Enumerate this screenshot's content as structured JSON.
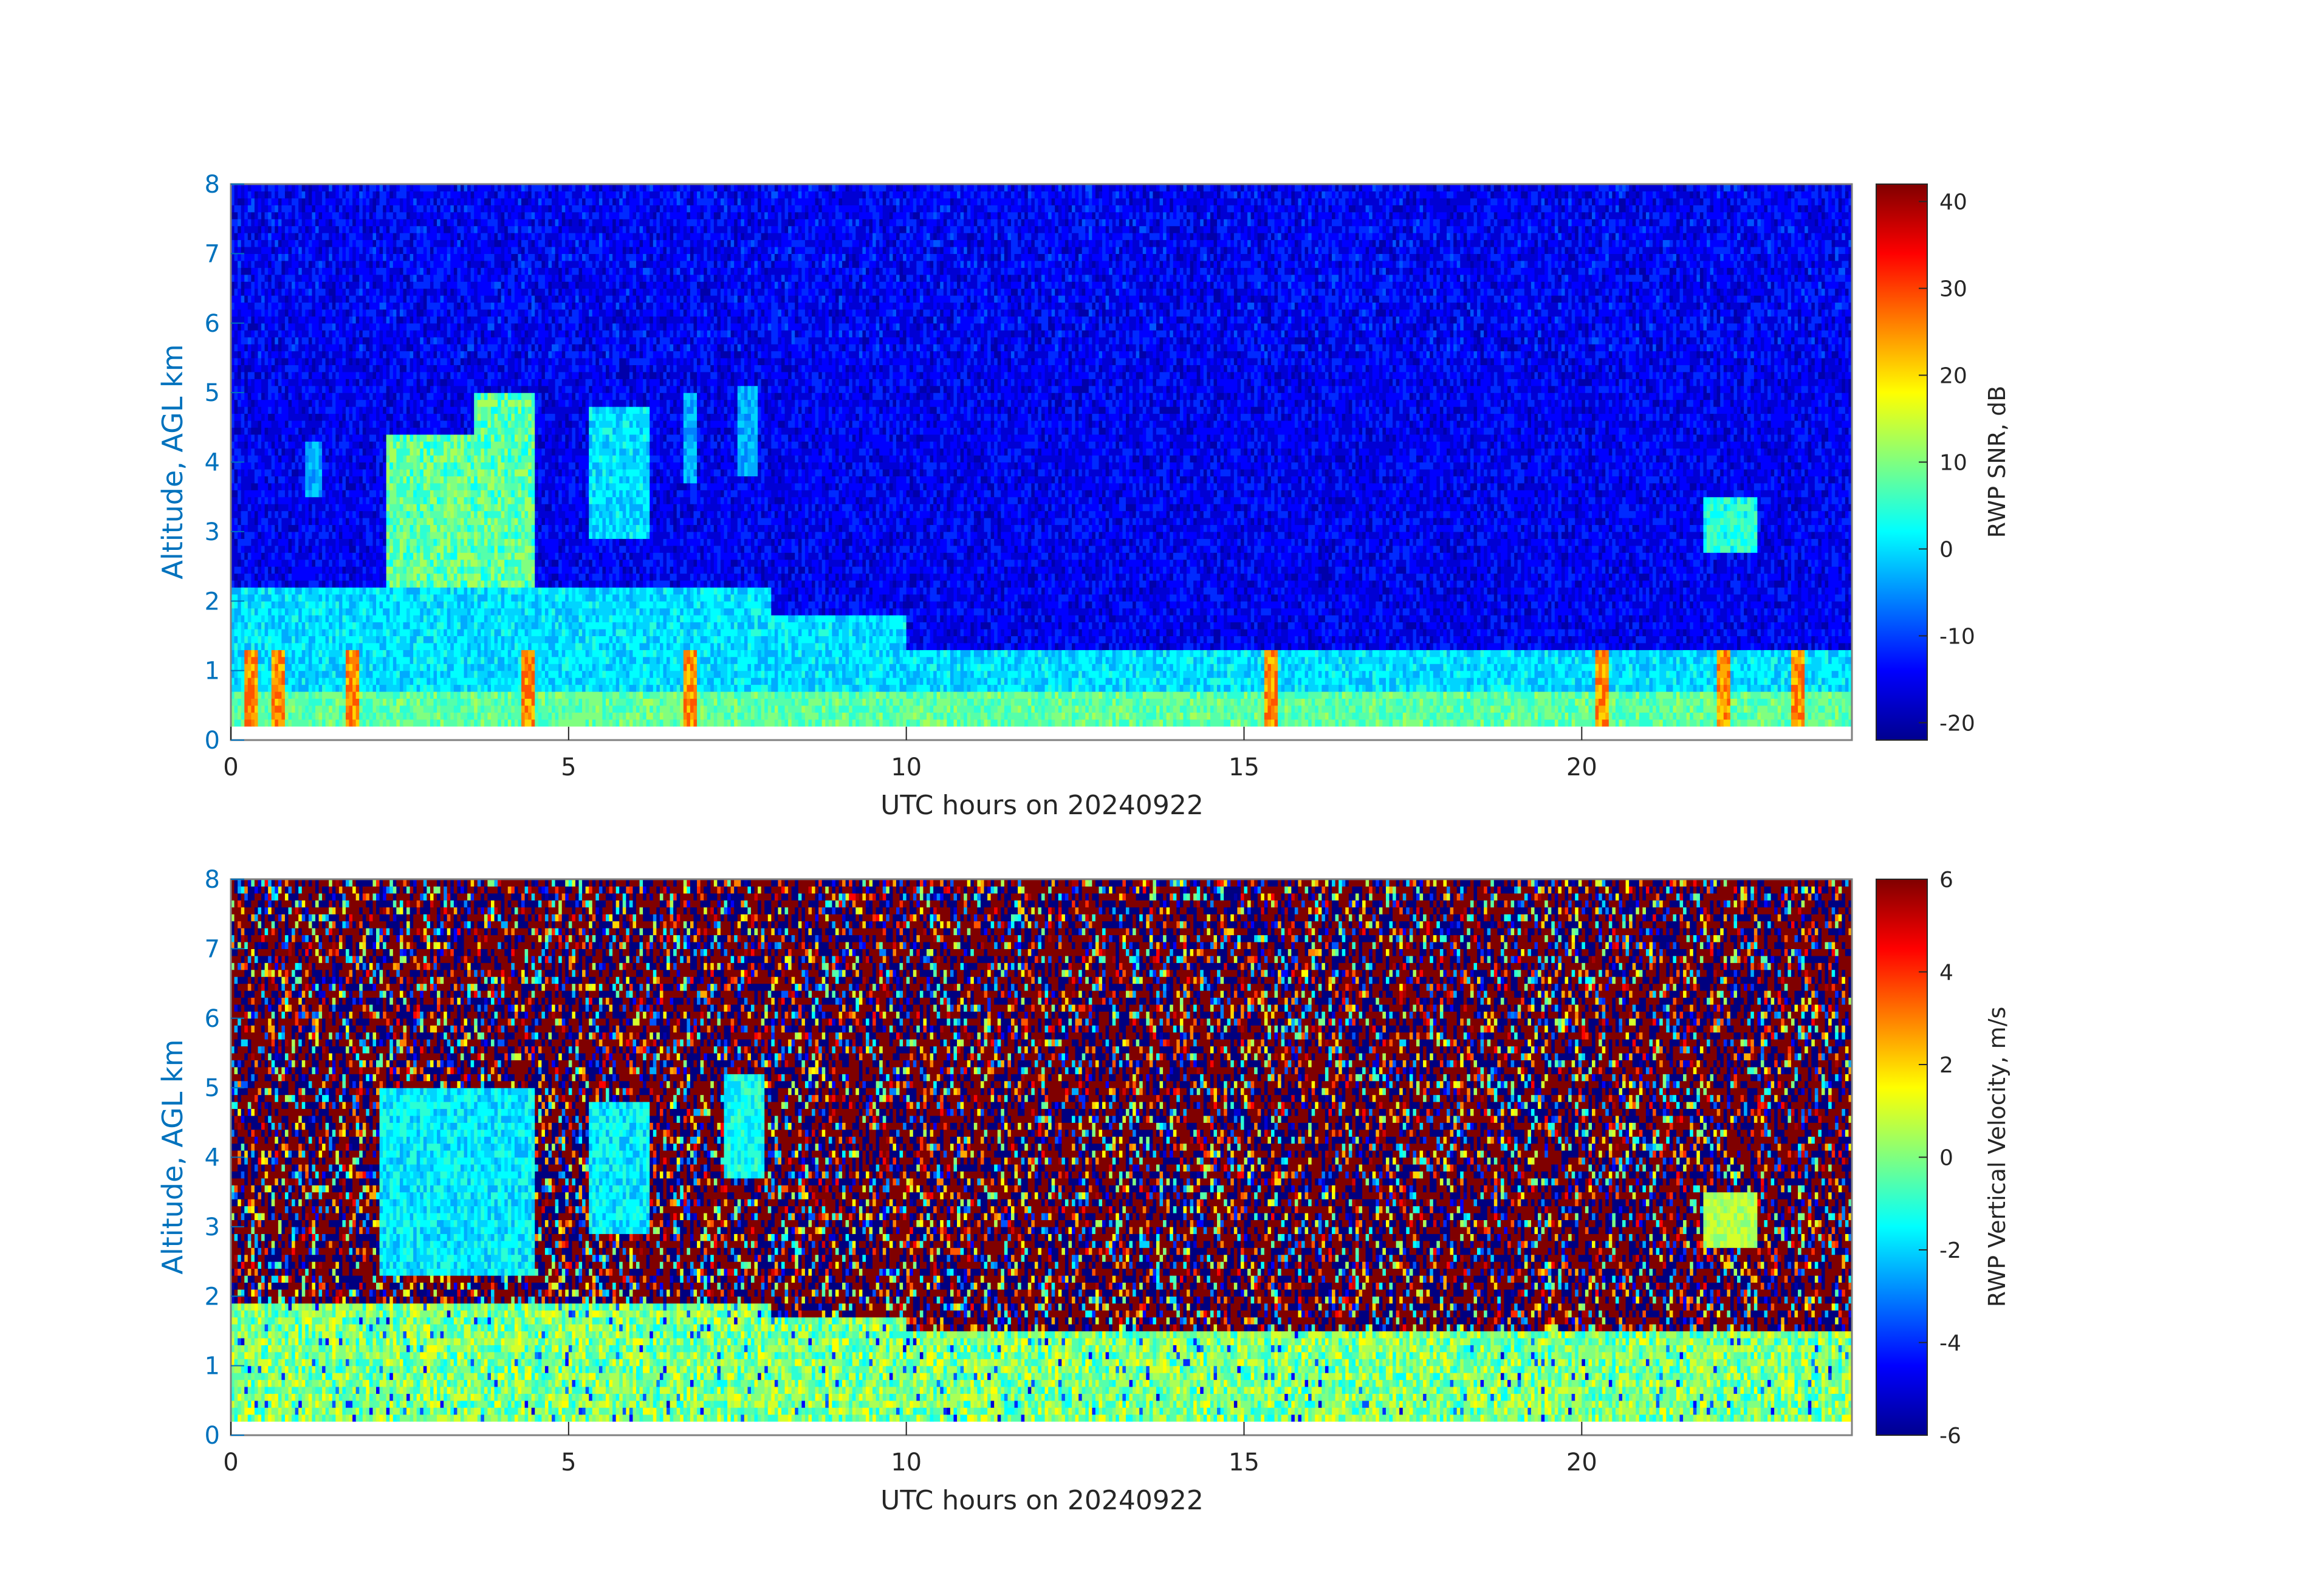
{
  "chart_data": [
    {
      "type": "heatmap",
      "xlabel": "UTC hours on 20240922",
      "ylabel": "Altitude, AGL km",
      "xlim": [
        0,
        24
      ],
      "ylim": [
        0,
        8
      ],
      "xticks": [
        "0",
        "5",
        "10",
        "15",
        "20"
      ],
      "yticks": [
        "0",
        "1",
        "2",
        "3",
        "4",
        "5",
        "6",
        "7",
        "8"
      ],
      "colorbar": {
        "label": "RWP SNR, dB",
        "range": [
          -22,
          42
        ],
        "ticks": [
          "-20",
          "-10",
          "0",
          "10",
          "20",
          "30",
          "40"
        ],
        "colormap": "jet"
      },
      "data_valid_altitude_range_km": [
        0.2,
        8
      ],
      "features": [
        {
          "x": [
            0,
            24
          ],
          "y": [
            0.2,
            1.3
          ],
          "level_db": [
            0,
            15
          ]
        },
        {
          "x": [
            0,
            8
          ],
          "y": [
            1.3,
            2.3
          ],
          "level_db": [
            -5,
            5
          ]
        },
        {
          "x": [
            2.3,
            4.5
          ],
          "y": [
            2.3,
            5.0
          ],
          "level_db": [
            0,
            15
          ]
        },
        {
          "x": [
            5.3,
            6.2
          ],
          "y": [
            2.9,
            4.8
          ],
          "level_db": [
            -5,
            5
          ]
        },
        {
          "x": [
            7.5,
            7.8
          ],
          "y": [
            3.8,
            5.1
          ],
          "level_db": [
            -5,
            0
          ]
        },
        {
          "x": [
            21.8,
            22.6
          ],
          "y": [
            2.7,
            3.5
          ],
          "level_db": [
            0,
            8
          ]
        }
      ]
    },
    {
      "type": "heatmap",
      "xlabel": "UTC hours on 20240922",
      "ylabel": "Altitude, AGL km",
      "xlim": [
        0,
        24
      ],
      "ylim": [
        0,
        8
      ],
      "xticks": [
        "0",
        "5",
        "10",
        "15",
        "20"
      ],
      "yticks": [
        "0",
        "1",
        "2",
        "3",
        "4",
        "5",
        "6",
        "7",
        "8"
      ],
      "colorbar": {
        "label": "RWP Vertical Velocity, m/s",
        "range": [
          -6,
          6
        ],
        "ticks": [
          "-6",
          "-4",
          "-2",
          "0",
          "2",
          "4",
          "6"
        ],
        "colormap": "jet"
      },
      "data_valid_altitude_range_km": [
        0.2,
        8
      ],
      "features": [
        {
          "x": [
            0,
            24
          ],
          "y": [
            0.2,
            1.6
          ],
          "level_ms": [
            -1,
            1.5
          ]
        },
        {
          "x": [
            2.2,
            4.5
          ],
          "y": [
            2.3,
            5.0
          ],
          "level_ms": [
            -2.5,
            -1
          ]
        },
        {
          "x": [
            5.3,
            6.2
          ],
          "y": [
            2.9,
            4.8
          ],
          "level_ms": [
            -2.5,
            -1
          ]
        },
        {
          "x": [
            21.8,
            22.6
          ],
          "y": [
            2.7,
            3.5
          ],
          "level_ms": [
            0,
            1
          ]
        }
      ]
    }
  ],
  "colors": {
    "axis_blue": "#0072BD",
    "axis_dark": "#262626",
    "axis_box": "#808080"
  }
}
